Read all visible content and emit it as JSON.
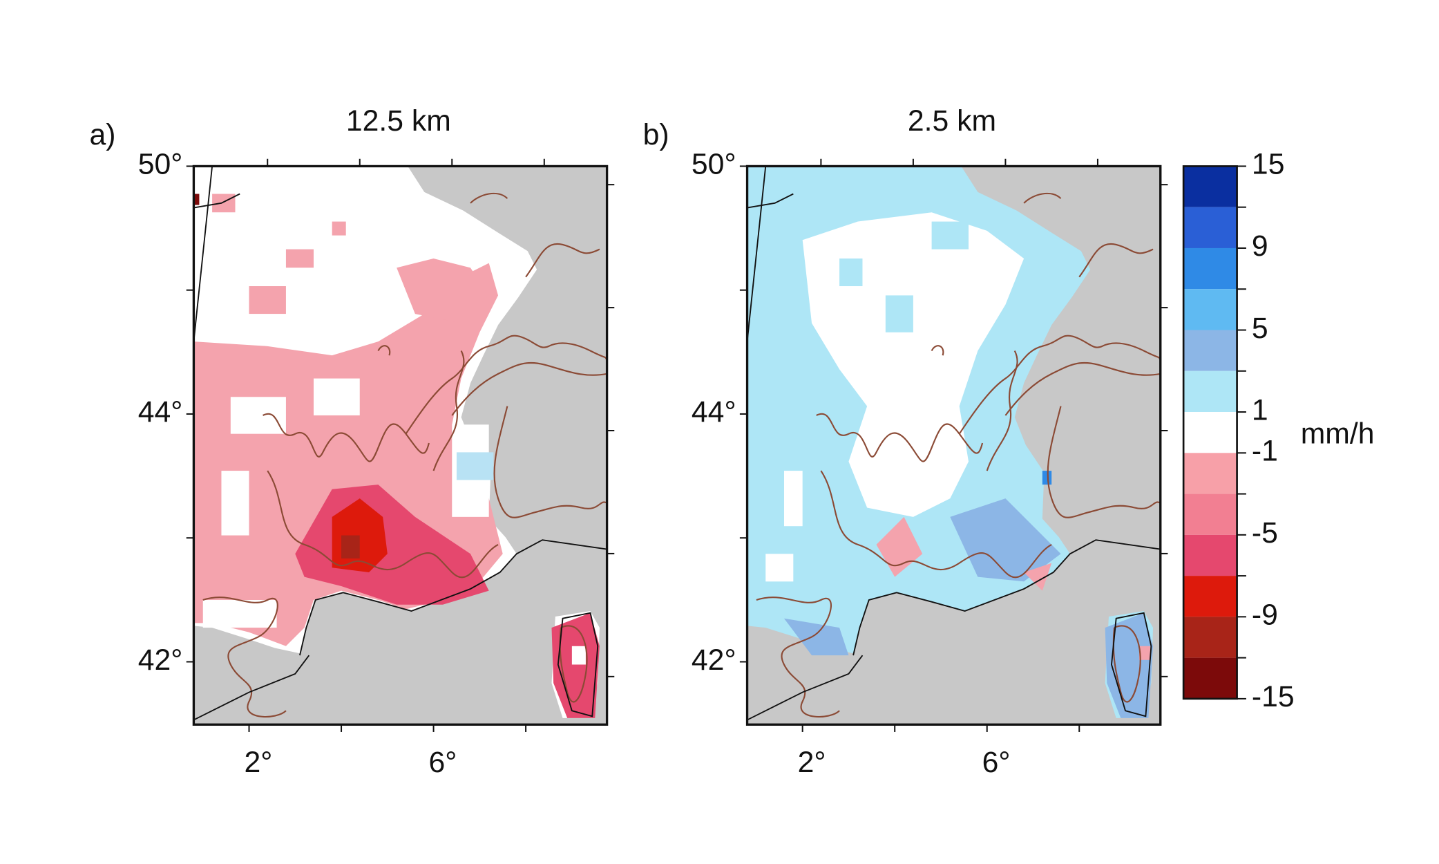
{
  "panels": [
    {
      "label": "a)",
      "title": "12.5 km",
      "yticks": [
        "50°",
        null,
        "44°",
        null,
        "42°"
      ],
      "xticks": [
        "2°",
        null,
        "6°",
        null
      ]
    },
    {
      "label": "b)",
      "title": "2.5 km",
      "yticks": [
        "50°",
        null,
        "44°",
        null,
        "42°"
      ],
      "xticks": [
        "2°",
        null,
        "6°",
        null
      ]
    }
  ],
  "colorbar": {
    "colors": [
      "#0a2fa0",
      "#2a5fd6",
      "#2f8ae6",
      "#5fbaf2",
      "#8cb6e6",
      "#aee6f6",
      "#ffffff",
      "#f7a0a8",
      "#f27f92",
      "#e5486e",
      "#dd1a0c",
      "#a82418",
      "#7c0a0a"
    ],
    "labels": [
      15,
      null,
      9,
      null,
      5,
      null,
      1,
      -1,
      null,
      -5,
      null,
      -9,
      null,
      -15
    ],
    "unit": "mm/h"
  }
}
